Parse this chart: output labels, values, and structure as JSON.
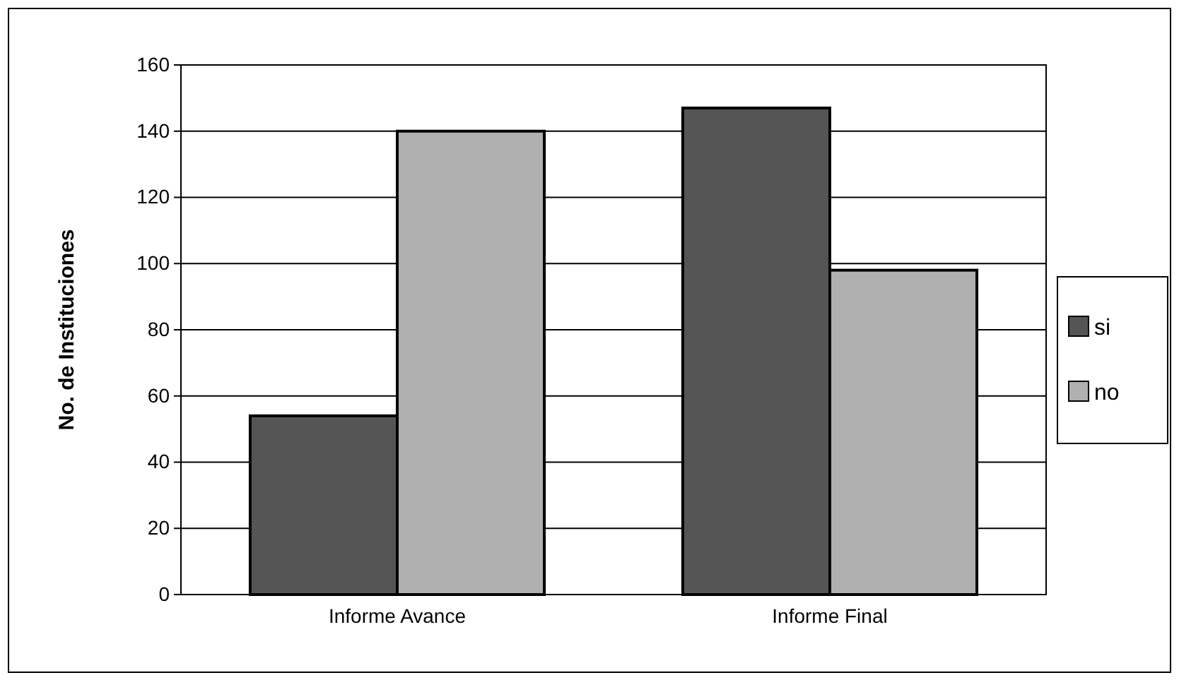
{
  "chart_data": {
    "type": "bar",
    "ylabel": "No. de Instituciones",
    "categories": [
      "Informe Avance",
      "Informe Final"
    ],
    "series": [
      {
        "name": "si",
        "color": "#555555",
        "values": [
          54,
          147
        ]
      },
      {
        "name": "no",
        "color": "#b0b0b0",
        "values": [
          140,
          98
        ]
      }
    ],
    "ylim": [
      0,
      160
    ],
    "yticks": [
      0,
      20,
      40,
      60,
      80,
      100,
      120,
      140,
      160
    ],
    "grid": "y",
    "legend": "right"
  }
}
